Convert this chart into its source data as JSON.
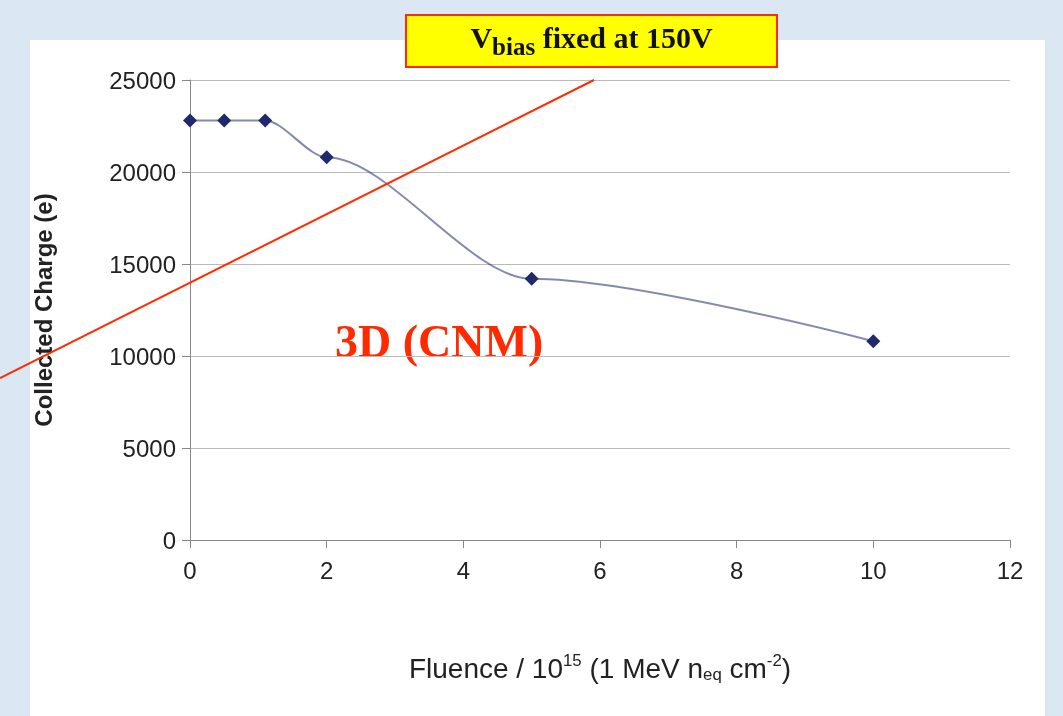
{
  "chart_data": {
    "type": "line",
    "xlabel": "Fluence / 10$^{15}$ (1 MeV n$_{eq}$ cm$^{-2}$)",
    "ylabel": "Collected Charge (e)",
    "x": [
      0,
      0.5,
      1.1,
      2,
      5,
      10
    ],
    "series": [
      {
        "color": "#1f2a6b",
        "values": [
          22800,
          22800,
          22800,
          20800,
          14200,
          10800
        ]
      }
    ],
    "xlim": [
      0,
      12
    ],
    "xticks": [
      0,
      2,
      4,
      6,
      8,
      10,
      12
    ],
    "ylim": [
      0,
      25000
    ],
    "yticks": [
      0,
      5000,
      10000,
      15000,
      20000,
      25000
    ],
    "grid": "y",
    "marker": "diamond",
    "annotations": [
      "V$_{bias}$ fixed at 150V",
      "3D (CNM)"
    ]
  }
}
